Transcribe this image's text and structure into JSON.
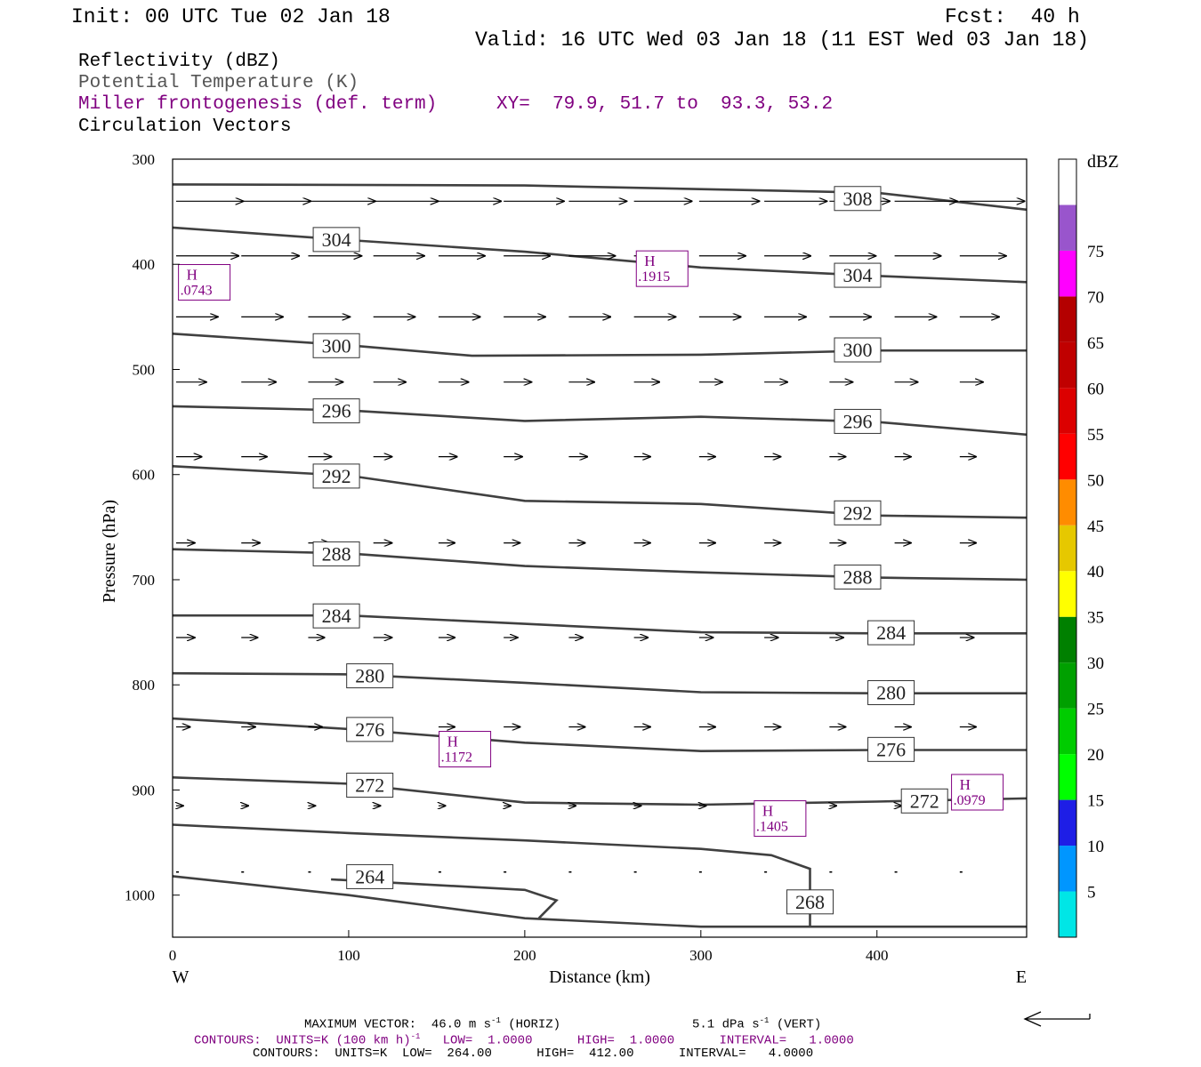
{
  "header": {
    "init": "Init: 00 UTC Tue 02 Jan 18",
    "fcst": "Fcst:  40 h",
    "valid": "Valid: 16 UTC Wed 03 Jan 18 (11 EST Wed 03 Jan 18)"
  },
  "titles": {
    "reflectivity": "Reflectivity (dBZ)",
    "theta": "Potential Temperature (K)",
    "miller": "Miller frontogenesis (def. term)",
    "xy": "XY=  79.9, 51.7 to  93.3, 53.2",
    "vectors": "Circulation Vectors"
  },
  "footer": {
    "maxvec_a": "MAXIMUM VECTOR:  46.0 m s",
    "maxvec_b": " (HORIZ)",
    "vert_a": "5.1 dPa s",
    "vert_b": " (VERT)",
    "sup": "-1",
    "contours_front_a": "CONTOURS:  UNITS=K (100 km h)",
    "contours_front_b": "   LOW=  1.0000      HIGH=  1.0000      INTERVAL=   1.0000",
    "contours_theta": "CONTOURS:  UNITS=K  LOW=  264.00      HIGH=  412.00      INTERVAL=   4.0000"
  },
  "colors": {
    "contour": "#404040",
    "purple": "#800080",
    "colorbar": [
      "#00e6e6",
      "#0096ff",
      "#1e1ee6",
      "#00ff00",
      "#00cc00",
      "#00a000",
      "#008000",
      "#ffff00",
      "#e6c800",
      "#ff8c00",
      "#ff0000",
      "#dc0000",
      "#c00000",
      "#b40000",
      "#ff00ff",
      "#9955cc",
      "#ffffff"
    ]
  },
  "chart_data": {
    "type": "cross-section",
    "xlabel": "Distance (km)",
    "ylabel": "Pressure (hPa)",
    "xlim": [
      0,
      485
    ],
    "ylim": [
      1040,
      300
    ],
    "x_ticks": [
      0,
      100,
      200,
      300,
      400
    ],
    "y_ticks": [
      300,
      400,
      500,
      600,
      700,
      800,
      900,
      1000
    ],
    "left_end": "W",
    "right_end": "E",
    "theta_contours": [
      {
        "label": "308",
        "points": [
          [
            0,
            324
          ],
          [
            200,
            325
          ],
          [
            400,
            332
          ],
          [
            485,
            348
          ]
        ],
        "label_at": [
          389,
          337
        ]
      },
      {
        "label": "304",
        "points": [
          [
            0,
            365
          ],
          [
            100,
            377
          ],
          [
            200,
            388
          ],
          [
            300,
            403
          ],
          [
            400,
            411
          ],
          [
            485,
            417
          ]
        ],
        "label_at": [
          93,
          376
        ]
      },
      {
        "label": "304",
        "points": [],
        "label_at": [
          389,
          410
        ]
      },
      {
        "label": "300",
        "points": [
          [
            0,
            466
          ],
          [
            100,
            477
          ],
          [
            170,
            487
          ],
          [
            300,
            486
          ],
          [
            400,
            482
          ],
          [
            485,
            482
          ]
        ],
        "label_at": [
          93,
          477
        ]
      },
      {
        "label": "300",
        "points": [],
        "label_at": [
          389,
          481
        ]
      },
      {
        "label": "296",
        "points": [
          [
            0,
            535
          ],
          [
            100,
            539
          ],
          [
            200,
            549
          ],
          [
            300,
            545
          ],
          [
            400,
            550
          ],
          [
            485,
            562
          ]
        ],
        "label_at": [
          93,
          539
        ]
      },
      {
        "label": "296",
        "points": [],
        "label_at": [
          389,
          549
        ]
      },
      {
        "label": "292",
        "points": [
          [
            0,
            592
          ],
          [
            100,
            601
          ],
          [
            200,
            625
          ],
          [
            300,
            628
          ],
          [
            400,
            639
          ],
          [
            485,
            641
          ]
        ],
        "label_at": [
          93,
          601
        ]
      },
      {
        "label": "292",
        "points": [],
        "label_at": [
          389,
          636
        ]
      },
      {
        "label": "288",
        "points": [
          [
            0,
            671
          ],
          [
            100,
            675
          ],
          [
            200,
            687
          ],
          [
            300,
            693
          ],
          [
            400,
            698
          ],
          [
            485,
            700
          ]
        ],
        "label_at": [
          93,
          675
        ]
      },
      {
        "label": "288",
        "points": [],
        "label_at": [
          389,
          697
        ]
      },
      {
        "label": "284",
        "points": [
          [
            0,
            734
          ],
          [
            100,
            734
          ],
          [
            200,
            742
          ],
          [
            300,
            750
          ],
          [
            400,
            751
          ],
          [
            485,
            751
          ]
        ],
        "label_at": [
          93,
          734
        ]
      },
      {
        "label": "284",
        "points": [],
        "label_at": [
          408,
          750
        ]
      },
      {
        "label": "280",
        "points": [
          [
            0,
            789
          ],
          [
            100,
            790
          ],
          [
            200,
            798
          ],
          [
            300,
            807
          ],
          [
            400,
            808
          ],
          [
            485,
            808
          ]
        ],
        "label_at": [
          112,
          791
        ]
      },
      {
        "label": "280",
        "points": [],
        "label_at": [
          408,
          807
        ]
      },
      {
        "label": "276",
        "points": [
          [
            0,
            832
          ],
          [
            100,
            842
          ],
          [
            200,
            855
          ],
          [
            300,
            863
          ],
          [
            400,
            862
          ],
          [
            485,
            862
          ]
        ],
        "label_at": [
          112,
          842
        ]
      },
      {
        "label": "276",
        "points": [],
        "label_at": [
          408,
          861
        ]
      },
      {
        "label": "272",
        "points": [
          [
            0,
            888
          ],
          [
            100,
            894
          ],
          [
            200,
            912
          ],
          [
            300,
            914
          ],
          [
            400,
            911
          ],
          [
            485,
            908
          ]
        ],
        "label_at": [
          112,
          895
        ]
      },
      {
        "label": "272",
        "points": [],
        "label_at": [
          427,
          910
        ]
      },
      {
        "label": "268",
        "points": [
          [
            0,
            933
          ],
          [
            100,
            941
          ],
          [
            200,
            948
          ],
          [
            300,
            956
          ],
          [
            340,
            962
          ],
          [
            362,
            975
          ],
          [
            362,
            1030
          ]
        ],
        "label_at": [
          362,
          1006
        ]
      },
      {
        "label": "264",
        "points": [
          [
            90,
            985
          ],
          [
            200,
            995
          ],
          [
            218,
            1005
          ],
          [
            208,
            1022
          ]
        ],
        "label_at": [
          112,
          982
        ]
      },
      {
        "label": "",
        "points": [
          [
            0,
            982
          ],
          [
            100,
            1000
          ],
          [
            200,
            1022
          ],
          [
            300,
            1030
          ],
          [
            485,
            1030
          ]
        ],
        "label_at": null
      }
    ],
    "frontogenesis_maxima": [
      {
        "label": "H",
        "value": ".0743",
        "x": 18,
        "p": 418
      },
      {
        "label": "H",
        "value": ".1915",
        "x": 278,
        "p": 405
      },
      {
        "label": "H",
        "value": ".1172",
        "x": 166,
        "p": 862
      },
      {
        "label": "H",
        "value": ".1405",
        "x": 345,
        "p": 928
      },
      {
        "label": "H",
        "value": ".0979",
        "x": 457,
        "p": 903
      }
    ],
    "vectors": {
      "rows_p": [
        340,
        392,
        450,
        512,
        583,
        665,
        755,
        840,
        915,
        978
      ],
      "x_positions": [
        0,
        37,
        75,
        112,
        149,
        186,
        223,
        260,
        297,
        334,
        371,
        408,
        445
      ],
      "u_ms": [
        [
          29,
          30,
          29,
          28,
          27,
          26,
          25,
          25,
          26,
          27,
          26,
          27,
          28
        ],
        [
          27,
          25,
          23,
          22,
          20,
          20,
          20,
          20,
          20,
          20,
          20,
          20,
          20
        ],
        [
          18,
          18,
          18,
          18,
          18,
          18,
          18,
          18,
          18,
          18,
          18,
          18,
          17
        ],
        [
          13,
          15,
          15,
          14,
          13,
          12,
          11,
          11,
          10,
          10,
          10,
          10,
          10
        ],
        [
          11,
          11,
          10,
          8,
          8,
          8,
          8,
          7,
          7,
          7,
          7,
          7,
          7
        ],
        [
          8,
          8,
          9,
          8,
          7,
          7,
          7,
          7,
          7,
          7,
          7,
          7,
          7
        ],
        [
          8,
          7,
          7,
          8,
          7,
          6,
          6,
          6,
          6,
          6,
          6,
          6,
          6
        ],
        [
          6,
          6,
          6,
          7,
          7,
          7,
          7,
          7,
          7,
          7,
          7,
          7,
          7
        ],
        [
          3,
          3,
          3,
          3,
          3,
          3,
          3,
          3,
          3,
          3,
          3,
          3,
          3
        ],
        [
          1,
          1,
          1,
          1,
          1,
          1,
          1,
          1,
          1,
          1,
          1,
          1,
          1
        ]
      ],
      "max_vector_ms": 46.0
    },
    "colorbar": {
      "unit": "dBZ",
      "levels": [
        "5",
        "10",
        "15",
        "20",
        "25",
        "30",
        "35",
        "40",
        "45",
        "50",
        "55",
        "60",
        "65",
        "70",
        "75"
      ]
    }
  }
}
